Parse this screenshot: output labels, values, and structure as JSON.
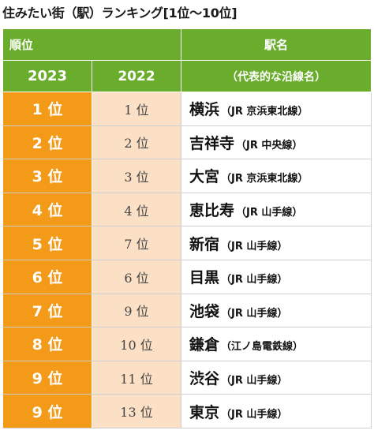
{
  "title": "住みたい街（駅）ランキング[1位〜10位]",
  "header": {
    "rank_label": "順位",
    "year_current": "2023",
    "year_previous": "2022",
    "station_label": "駅名",
    "line_label": "（代表的な沿線名）"
  },
  "colors": {
    "header_green": "#6aad2c",
    "rank_orange": "#f39a19",
    "prev_rank_peach": "#fbe0c6"
  },
  "rows": [
    {
      "rank_2023": "1 位",
      "rank_2022": "1 位",
      "station": "横浜",
      "line": "（JR 京浜東北線）"
    },
    {
      "rank_2023": "2 位",
      "rank_2022": "2 位",
      "station": "吉祥寺",
      "line": "（JR 中央線）"
    },
    {
      "rank_2023": "3 位",
      "rank_2022": "3 位",
      "station": "大宮",
      "line": "（JR 京浜東北線）"
    },
    {
      "rank_2023": "4 位",
      "rank_2022": "4 位",
      "station": "恵比寿",
      "line": "（JR 山手線）"
    },
    {
      "rank_2023": "5 位",
      "rank_2022": "7 位",
      "station": "新宿",
      "line": "（JR 山手線）"
    },
    {
      "rank_2023": "6 位",
      "rank_2022": "6 位",
      "station": "目黒",
      "line": "（JR 山手線）"
    },
    {
      "rank_2023": "7 位",
      "rank_2022": "9 位",
      "station": "池袋",
      "line": "（JR 山手線）"
    },
    {
      "rank_2023": "8 位",
      "rank_2022": "10 位",
      "station": "鎌倉",
      "line": "（江ノ島電鉄線）"
    },
    {
      "rank_2023": "9 位",
      "rank_2022": "11 位",
      "station": "渋谷",
      "line": "（JR 山手線）"
    },
    {
      "rank_2023": "9 位",
      "rank_2022": "13 位",
      "station": "東京",
      "line": "（JR 山手線）"
    }
  ]
}
